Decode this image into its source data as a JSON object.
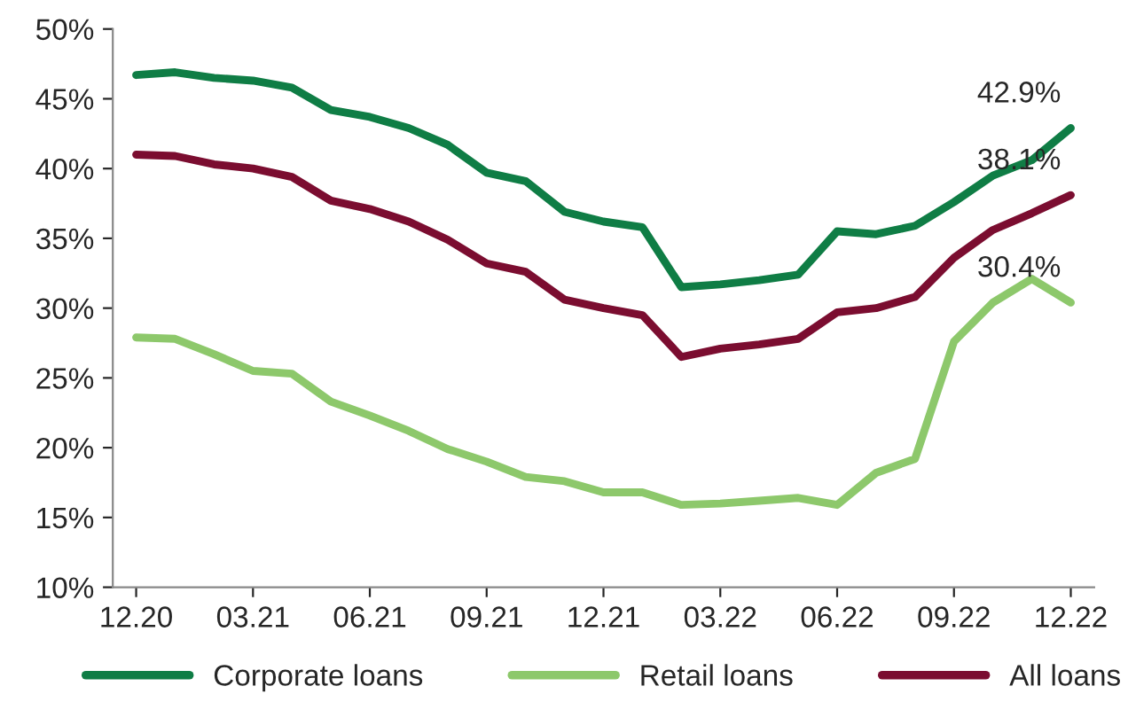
{
  "chart_data": {
    "type": "line",
    "categories": [
      "12.20",
      null,
      null,
      "03.21",
      null,
      null,
      "06.21",
      null,
      null,
      "09.21",
      null,
      null,
      "12.21",
      null,
      null,
      "03.22",
      null,
      null,
      "06.22",
      null,
      null,
      "09.22",
      null,
      null,
      "12.22"
    ],
    "series": [
      {
        "name": "Corporate loans",
        "color": "#0f7d45",
        "values": [
          46.7,
          46.9,
          46.5,
          46.3,
          45.8,
          44.2,
          43.7,
          42.9,
          41.7,
          39.7,
          39.1,
          36.9,
          36.2,
          35.8,
          31.5,
          31.7,
          32.0,
          32.4,
          35.5,
          35.3,
          35.9,
          37.6,
          39.5,
          40.6,
          42.9
        ]
      },
      {
        "name": "Retail loans",
        "color": "#8dc86b",
        "values": [
          27.9,
          27.8,
          26.7,
          25.5,
          25.3,
          23.3,
          22.3,
          21.2,
          19.9,
          19.0,
          17.9,
          17.6,
          16.8,
          16.8,
          15.9,
          16.0,
          16.2,
          16.4,
          15.9,
          18.2,
          19.2,
          27.6,
          30.4,
          32.1,
          30.4
        ]
      },
      {
        "name": "All loans",
        "color": "#7b0d30",
        "values": [
          41.0,
          40.9,
          40.3,
          40.0,
          39.4,
          37.7,
          37.1,
          36.2,
          34.9,
          33.2,
          32.6,
          30.6,
          30.0,
          29.5,
          26.5,
          27.1,
          27.4,
          27.8,
          29.7,
          30.0,
          30.8,
          33.6,
          35.6,
          36.8,
          38.1
        ]
      }
    ],
    "ylim": [
      10,
      50
    ],
    "yticks": [
      {
        "value": 10,
        "label": "10%"
      },
      {
        "value": 15,
        "label": "15%"
      },
      {
        "value": 20,
        "label": "20%"
      },
      {
        "value": 25,
        "label": "25%"
      },
      {
        "value": 30,
        "label": "30%"
      },
      {
        "value": 35,
        "label": "35%"
      },
      {
        "value": 40,
        "label": "40%"
      },
      {
        "value": 45,
        "label": "45%"
      },
      {
        "value": 50,
        "label": "50%"
      }
    ],
    "annotations": [
      {
        "text": "42.9%",
        "x": "12.22",
        "y": 42.9
      },
      {
        "text": "38.1%",
        "x": "12.22",
        "y": 38.1
      },
      {
        "text": "30.4%",
        "x": "12.22",
        "y": 30.4
      }
    ],
    "grid": false,
    "legend": "bottom",
    "marker": "none",
    "line_style": "solid"
  }
}
